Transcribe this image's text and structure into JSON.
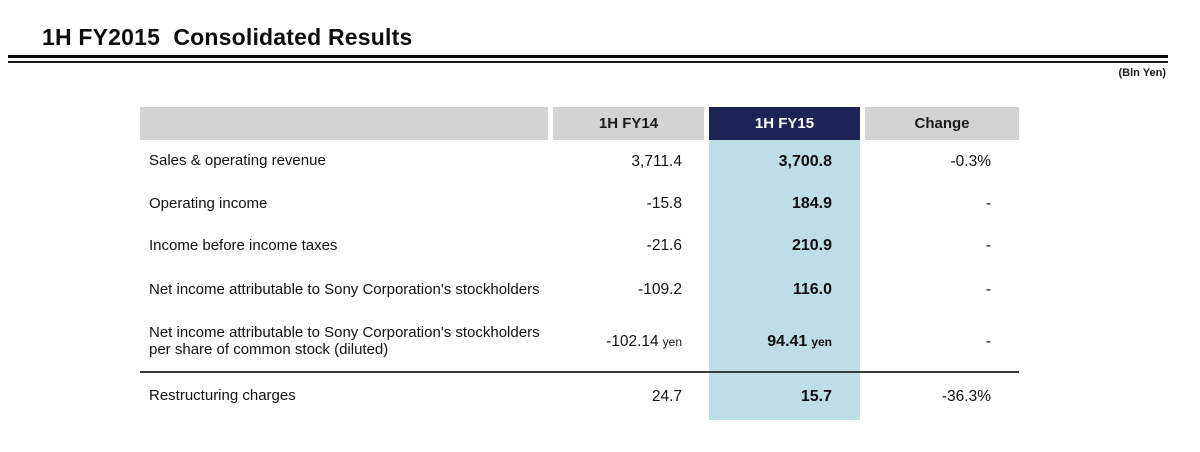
{
  "title": "1H FY2015  Consolidated Results",
  "unit_note": "(Bln Yen)",
  "colors": {
    "highlight_header": "#1e2355",
    "highlight_column": "#bcdee4",
    "header_bg": "#d3d3d3"
  },
  "table": {
    "columns": {
      "label": "",
      "fy14": "1H FY14",
      "fy15": "1H FY15",
      "change": "Change"
    },
    "rows": [
      {
        "label": "Sales & operating revenue",
        "fy14": "3,711.4",
        "fy14_suffix": "",
        "fy15": "3,700.8",
        "fy15_suffix": "",
        "change": "-0.3%"
      },
      {
        "label": "Operating income",
        "fy14": "-15.8",
        "fy14_suffix": "",
        "fy15": "184.9",
        "fy15_suffix": "",
        "change": "-"
      },
      {
        "label": "Income before income taxes",
        "fy14": "-21.6",
        "fy14_suffix": "",
        "fy15": "210.9",
        "fy15_suffix": "",
        "change": "-"
      },
      {
        "label": "Net income attributable to Sony Corporation's stockholders",
        "fy14": "-109.2",
        "fy14_suffix": "",
        "fy15": "116.0",
        "fy15_suffix": "",
        "change": "-"
      },
      {
        "label": "Net income attributable to Sony Corporation's stockholders per share of common stock (diluted)",
        "fy14": "-102.14",
        "fy14_suffix": "yen",
        "fy15": "94.41",
        "fy15_suffix": "yen",
        "change": "-"
      },
      {
        "label": "Restructuring charges",
        "fy14": "24.7",
        "fy14_suffix": "",
        "fy15": "15.7",
        "fy15_suffix": "",
        "change": "-36.3%"
      }
    ]
  }
}
